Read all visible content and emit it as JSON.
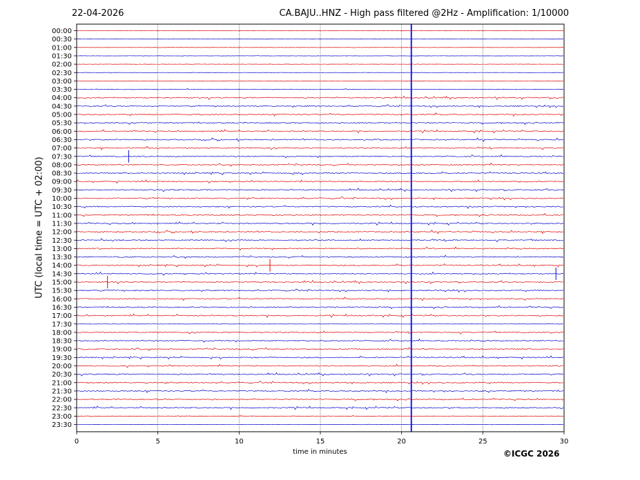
{
  "header": {
    "date": "22-04-2026",
    "title": "CA.BAJU..HNZ - High pass filtered @2Hz - Amplification: 1/10000"
  },
  "footer": {
    "copyright": "©ICGC 2026"
  },
  "chart_data": {
    "type": "line",
    "title": "CA.BAJU..HNZ - High pass filtered @2Hz - Amplification: 1/10000",
    "xlabel": "time in minutes",
    "ylabel": "UTC (local time = UTC + 02:00)",
    "xlim": [
      0,
      30
    ],
    "x_ticks": [
      0,
      5,
      10,
      15,
      20,
      25,
      30
    ],
    "x_tick_labels": [
      "0",
      "5",
      "10",
      "15",
      "20",
      "25",
      "30"
    ],
    "vertical_gridlines": [
      5,
      10,
      15,
      20,
      25
    ],
    "grid": "vertical dotted",
    "rows": [
      "00:00",
      "00:30",
      "01:00",
      "01:30",
      "02:00",
      "02:30",
      "03:00",
      "03:30",
      "04:00",
      "04:30",
      "05:00",
      "05:30",
      "06:00",
      "06:30",
      "07:00",
      "07:30",
      "08:00",
      "08:30",
      "09:00",
      "09:30",
      "10:00",
      "10:30",
      "11:00",
      "11:30",
      "12:00",
      "12:30",
      "13:00",
      "13:30",
      "14:00",
      "14:30",
      "15:00",
      "15:30",
      "16:00",
      "16:30",
      "17:00",
      "17:30",
      "18:00",
      "18:30",
      "19:00",
      "19:30",
      "20:00",
      "20:30",
      "21:00",
      "21:30",
      "22:00",
      "22:30",
      "23:00",
      "23:30"
    ],
    "trace_colors": [
      "#e00000",
      "#0000cc"
    ],
    "marker_line": {
      "minute": 20.6,
      "color": "#1a1adf"
    },
    "events": [
      {
        "row": "07:30",
        "minute": 3.2
      },
      {
        "row": "14:00",
        "minute": 11.9
      },
      {
        "row": "14:30",
        "minute": 29.5
      },
      {
        "row": "15:00",
        "minute": 1.9
      }
    ]
  }
}
